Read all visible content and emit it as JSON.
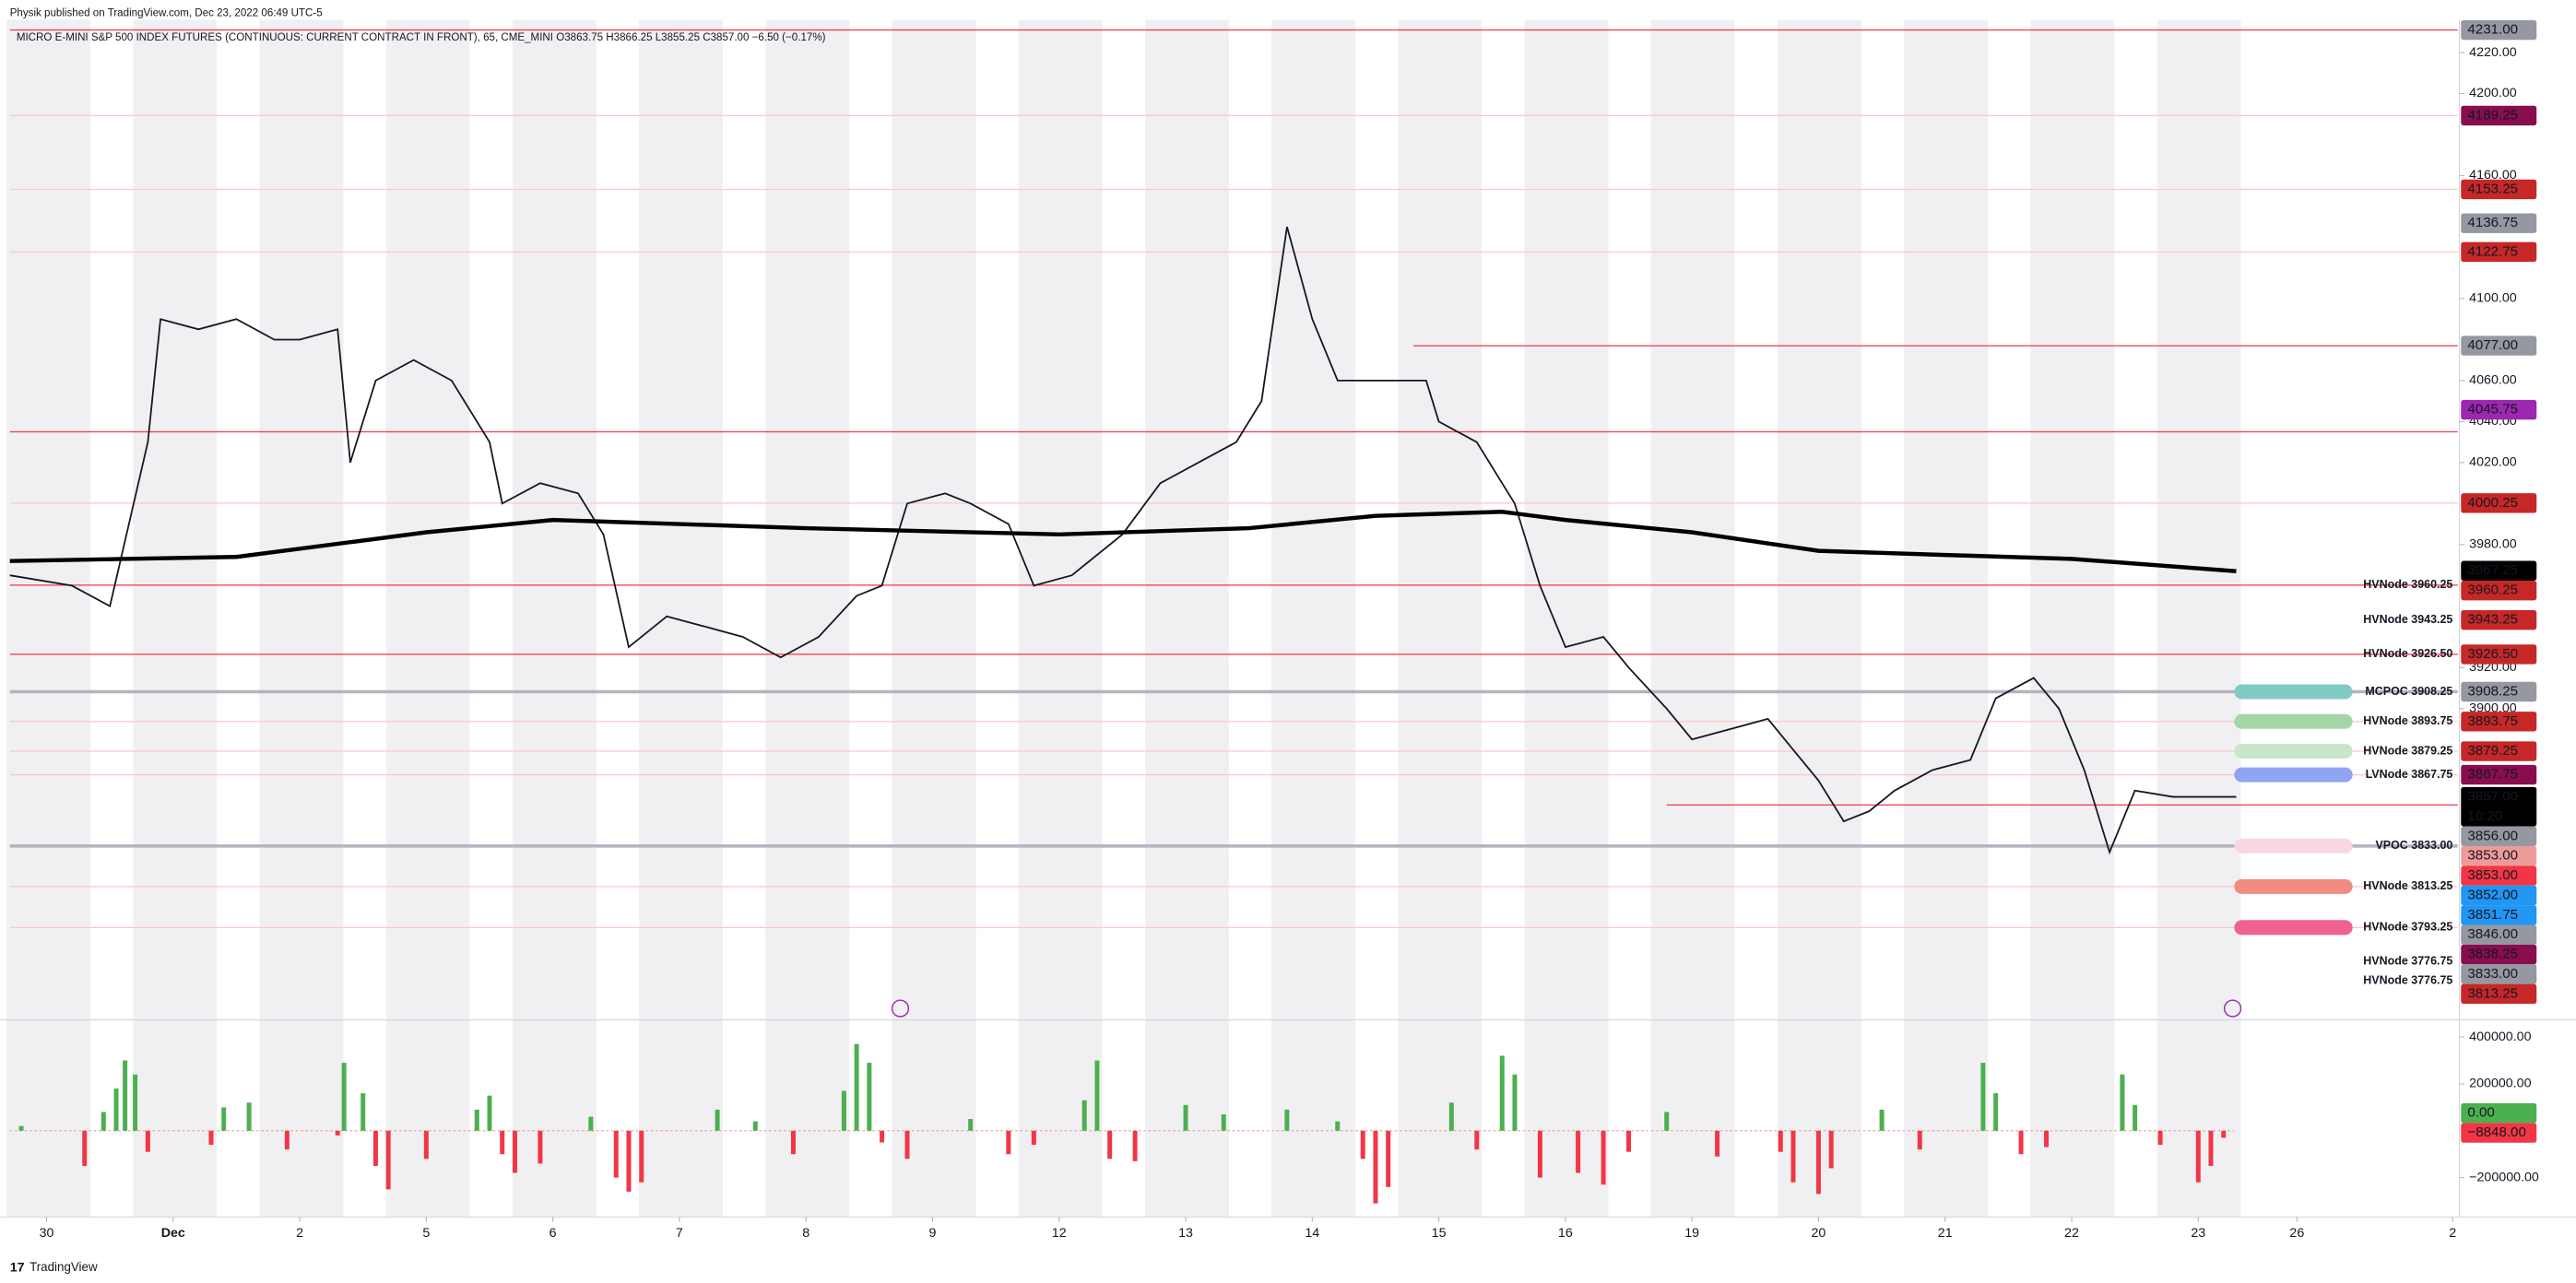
{
  "header": {
    "published": "Physik published on TradingView.com, Dec 23, 2022 06:49 UTC-5",
    "symbol": "MICRO E-MINI S&P 500 INDEX FUTURES (CONTINUOUS: CURRENT CONTRACT IN FRONT), 65, CME_MINI  O3863.75  H3866.25  L3855.25  C3857.00  −6.50 (−0.17%)"
  },
  "footer": {
    "brand": "TradingView"
  },
  "chart_data": [
    {
      "type": "line",
      "color": "#131722",
      "vwap_color": "#000000",
      "xlim": [
        -0.29,
        19.05
      ],
      "ylim": [
        3749,
        4232
      ],
      "xticks": [
        {
          "value": 0,
          "label": "30"
        },
        {
          "value": 1,
          "label": "Dec"
        },
        {
          "value": 2,
          "label": "2"
        },
        {
          "value": 3,
          "label": "5"
        },
        {
          "value": 4,
          "label": "6"
        },
        {
          "value": 5,
          "label": "7"
        },
        {
          "value": 6,
          "label": "8"
        },
        {
          "value": 7,
          "label": "9"
        },
        {
          "value": 8,
          "label": "12"
        },
        {
          "value": 9,
          "label": "13"
        },
        {
          "value": 10,
          "label": "14"
        },
        {
          "value": 11,
          "label": "15"
        },
        {
          "value": 12,
          "label": "16"
        },
        {
          "value": 13,
          "label": "19"
        },
        {
          "value": 14,
          "label": "20"
        },
        {
          "value": 15,
          "label": "21"
        },
        {
          "value": 16,
          "label": "22"
        },
        {
          "value": 17,
          "label": "23"
        },
        {
          "value": 17.78,
          "label": "26"
        },
        {
          "value": 19.01,
          "label": "2"
        }
      ],
      "yticks": [
        {
          "value": 4220,
          "label": "4220.00"
        },
        {
          "value": 4200,
          "label": "4200.00"
        },
        {
          "value": 4160,
          "label": "4160.00"
        },
        {
          "value": 4100,
          "label": "4100.00"
        },
        {
          "value": 4060,
          "label": "4060.00"
        },
        {
          "value": 4040,
          "label": "4040.00"
        },
        {
          "value": 4020,
          "label": "4020.00"
        },
        {
          "value": 3980,
          "label": "3980.00"
        },
        {
          "value": 3920,
          "label": "3920.00"
        },
        {
          "value": 3900,
          "label": "3900.00"
        }
      ],
      "x": [
        -0.29,
        0.2,
        0.5,
        0.8,
        0.9,
        1.2,
        1.5,
        1.8,
        2.0,
        2.3,
        2.4,
        2.6,
        2.9,
        3.2,
        3.5,
        3.6,
        3.9,
        4.2,
        4.4,
        4.6,
        4.9,
        5.2,
        5.5,
        5.8,
        6.1,
        6.4,
        6.6,
        6.8,
        7.1,
        7.3,
        7.6,
        7.8,
        8.1,
        8.5,
        8.8,
        9.1,
        9.4,
        9.6,
        9.8,
        10.0,
        10.2,
        10.4,
        10.6,
        10.9,
        11.0,
        11.3,
        11.6,
        11.8,
        12.0,
        12.3,
        12.5,
        12.8,
        13.0,
        13.3,
        13.6,
        13.8,
        14.0,
        14.2,
        14.4,
        14.6,
        14.9,
        15.2,
        15.4,
        15.7,
        15.9,
        16.1,
        16.3,
        16.5,
        16.8,
        17.3
      ],
      "values": [
        3965,
        3960,
        3950,
        4030,
        4090,
        4085,
        4090,
        4080,
        4080,
        4085,
        4020,
        4060,
        4070,
        4060,
        4030,
        4000,
        4010,
        4005,
        3985,
        3930,
        3945,
        3940,
        3935,
        3925,
        3935,
        3955,
        3960,
        4000,
        4005,
        4000,
        3990,
        3960,
        3965,
        3985,
        4010,
        4020,
        4030,
        4050,
        4135,
        4090,
        4060,
        4060,
        4060,
        4060,
        4040,
        4030,
        4000,
        3960,
        3930,
        3935,
        3920,
        3900,
        3885,
        3890,
        3895,
        3880,
        3865,
        3845,
        3850,
        3860,
        3870,
        3875,
        3905,
        3915,
        3900,
        3870,
        3830,
        3860,
        3857,
        3857
      ],
      "vwap_x": [
        -0.29,
        1.5,
        3.0,
        4.0,
        6.0,
        8.0,
        9.5,
        10.5,
        11.5,
        12.0,
        13.0,
        14.0,
        15.0,
        16.0,
        17.3
      ],
      "vwap_values": [
        3972,
        3974,
        3986,
        3992,
        3988,
        3985,
        3988,
        3994,
        3996,
        3992,
        3986,
        3977,
        3975,
        3973,
        3967
      ],
      "levels": [
        {
          "price": 4231,
          "start": -0.29,
          "color": "#f23645"
        },
        {
          "price": 4189.25,
          "start": -0.29,
          "color": "#f7c9cd"
        },
        {
          "price": 4153.25,
          "start": -0.29,
          "color": "#f7c9cd"
        },
        {
          "price": 4122.75,
          "start": -0.29,
          "color": "#f7c9cd"
        },
        {
          "price": 4077,
          "start": 10.8,
          "color": "#f23645"
        },
        {
          "price": 4035,
          "start": -0.29,
          "color": "#f23645"
        },
        {
          "price": 4000.25,
          "start": -0.29,
          "color": "#f7c9cd"
        },
        {
          "price": 3960.25,
          "start": -0.29,
          "color": "#f23645"
        },
        {
          "price": 3926.5,
          "start": -0.29,
          "color": "#f23645"
        },
        {
          "price": 3908.25,
          "start": -0.29,
          "color": "#b2b5be"
        },
        {
          "price": 3893.75,
          "start": -0.29,
          "color": "#f7c9cd"
        },
        {
          "price": 3879.25,
          "start": -0.29,
          "color": "#f7c9cd"
        },
        {
          "price": 3867.75,
          "start": -0.29,
          "color": "#f7c9cd"
        },
        {
          "price": 3853,
          "start": 12.8,
          "color": "#f23645"
        },
        {
          "price": 3833,
          "start": -0.29,
          "color": "#b2b5be"
        },
        {
          "price": 3813.25,
          "start": -0.29,
          "color": "#f7c9cd"
        },
        {
          "price": 3793.25,
          "start": -0.29,
          "color": "#f7c9cd"
        }
      ],
      "badges": [
        {
          "price": 4231,
          "label": "4231.00",
          "color": "#9598a1"
        },
        {
          "price": 4189.25,
          "label": "4189.25",
          "color": "#880e4f"
        },
        {
          "price": 4153.25,
          "label": "4153.25",
          "color": "#c62828"
        },
        {
          "price": 4136.75,
          "label": "4136.75",
          "color": "#9598a1"
        },
        {
          "price": 4122.75,
          "label": "4122.75",
          "color": "#c62828"
        },
        {
          "price": 4077,
          "label": "4077.00",
          "color": "#9598a1"
        },
        {
          "price": 4045.75,
          "label": "4045.75",
          "color": "#9c27b0"
        },
        {
          "price": 4000.25,
          "label": "4000.25",
          "color": "#c62828"
        },
        {
          "price": 3967.25,
          "label": "3967.25",
          "color": "#000000"
        },
        {
          "price": 3960.25,
          "label": "3960.25",
          "color": "#c62828"
        },
        {
          "price": 3943.25,
          "label": "3943.25",
          "color": "#c62828"
        },
        {
          "price": 3926.5,
          "label": "3926.50",
          "color": "#c62828"
        },
        {
          "price": 3908.25,
          "label": "3908.25",
          "color": "#9598a1"
        },
        {
          "price": 3893.75,
          "label": "3893.75",
          "color": "#c62828"
        },
        {
          "price": 3879.25,
          "label": "3879.25",
          "color": "#c62828"
        },
        {
          "price": 3867.75,
          "label": "3867.75",
          "color": "#880e4f"
        },
        {
          "price": 3857,
          "label": "3857.00",
          "sub": "10:20",
          "color": "#000000"
        },
        {
          "price": 3856,
          "label": "3856.00",
          "color": "#9598a1"
        },
        {
          "price": 3853,
          "label": "3853.00",
          "color": "#ef9a9a"
        },
        {
          "price": 3853,
          "label": "3853.00",
          "color": "#f23645"
        },
        {
          "price": 3852,
          "label": "3852.00",
          "color": "#2196f3"
        },
        {
          "price": 3851.75,
          "label": "3851.75",
          "color": "#2196f3"
        },
        {
          "price": 3846,
          "label": "3846.00",
          "color": "#9598a1"
        },
        {
          "price": 3838.25,
          "label": "3838.25",
          "color": "#880e4f"
        },
        {
          "price": 3833,
          "label": "3833.00",
          "color": "#9598a1"
        },
        {
          "price": 3813.25,
          "label": "3813.25",
          "color": "#c62828"
        }
      ],
      "nodes": [
        {
          "price": 3960.25,
          "text": "HVNode 3960.25",
          "color": "#c62828"
        },
        {
          "price": 3943.25,
          "text": "HVNode 3943.25",
          "color": "#c62828"
        },
        {
          "price": 3926.5,
          "text": "HVNode 3926.50",
          "color": "#c62828"
        },
        {
          "price": 3908.25,
          "text": "MCPOC 3908.25",
          "color": "#9598a1",
          "pill": "#80cbc4"
        },
        {
          "price": 3893.75,
          "text": "HVNode 3893.75",
          "color": "#c62828",
          "pill": "#a5d6a7"
        },
        {
          "price": 3879.25,
          "text": "HVNode 3879.25",
          "color": "#c62828",
          "pill": "#c8e6c9"
        },
        {
          "price": 3867.75,
          "text": "LVNode 3867.75",
          "color": "#9c27b0",
          "pill": "#90a4f4"
        },
        {
          "price": 3833,
          "text": "VPOC 3833.00",
          "color": "#9598a1",
          "pill": "#f8d7e3"
        },
        {
          "price": 3813.25,
          "text": "HVNode 3813.25",
          "color": "#c62828",
          "pill": "#f28b82"
        },
        {
          "price": 3793.25,
          "text": "HVNode 3793.25",
          "color": "#c62828",
          "pill": "#f06292"
        },
        {
          "price": 3776.75,
          "text": "HVNode 3776.75",
          "color": "#c62828"
        },
        {
          "price": 3776.75,
          "text": "HVNode 3776.75",
          "color": "#c62828"
        }
      ]
    },
    {
      "type": "bar",
      "up_color": "#4caf50",
      "down_color": "#f23645",
      "ylim": [
        -361000,
        466000
      ],
      "yticks": [
        {
          "value": 400000,
          "label": "400000.00"
        },
        {
          "value": 200000,
          "label": "200000.00"
        },
        {
          "value": -200000,
          "label": "−200000.00"
        }
      ],
      "x": [
        -0.2,
        0.3,
        0.45,
        0.55,
        0.62,
        0.7,
        0.8,
        1.3,
        1.4,
        1.6,
        1.9,
        2.3,
        2.35,
        2.5,
        2.6,
        2.7,
        3.0,
        3.4,
        3.5,
        3.6,
        3.7,
        3.9,
        4.3,
        4.5,
        4.6,
        4.7,
        5.3,
        5.6,
        5.9,
        6.3,
        6.4,
        6.5,
        6.6,
        6.8,
        7.3,
        7.6,
        7.8,
        8.2,
        8.3,
        8.4,
        8.6,
        9.0,
        9.3,
        9.8,
        10.2,
        10.4,
        10.5,
        10.6,
        11.1,
        11.3,
        11.5,
        11.6,
        11.8,
        12.1,
        12.3,
        12.5,
        12.8,
        13.2,
        13.7,
        13.8,
        14.0,
        14.1,
        14.5,
        14.8,
        15.3,
        15.4,
        15.6,
        15.8,
        16.4,
        16.5,
        16.7,
        17.0,
        17.1,
        17.2
      ],
      "values": [
        20000,
        -150000,
        80000,
        180000,
        300000,
        240000,
        -90000,
        -60000,
        100000,
        120000,
        -80000,
        -20000,
        290000,
        160000,
        -150000,
        -250000,
        -120000,
        90000,
        150000,
        -100000,
        -180000,
        -140000,
        60000,
        -200000,
        -260000,
        -220000,
        90000,
        40000,
        -100000,
        170000,
        370000,
        290000,
        -50000,
        -120000,
        50000,
        -100000,
        -60000,
        130000,
        300000,
        -120000,
        -130000,
        110000,
        70000,
        90000,
        40000,
        -120000,
        -310000,
        -240000,
        120000,
        -80000,
        320000,
        240000,
        -200000,
        -180000,
        -230000,
        -90000,
        80000,
        -110000,
        -90000,
        -220000,
        -270000,
        -160000,
        90000,
        -80000,
        290000,
        160000,
        -100000,
        -70000,
        240000,
        110000,
        -60000,
        -220000,
        -150000,
        -30000
      ],
      "badges": [
        {
          "value": 0,
          "label": "0.00",
          "color": "#4caf50"
        },
        {
          "value": -8848,
          "label": "−8848.00",
          "color": "#f23645"
        }
      ]
    }
  ]
}
